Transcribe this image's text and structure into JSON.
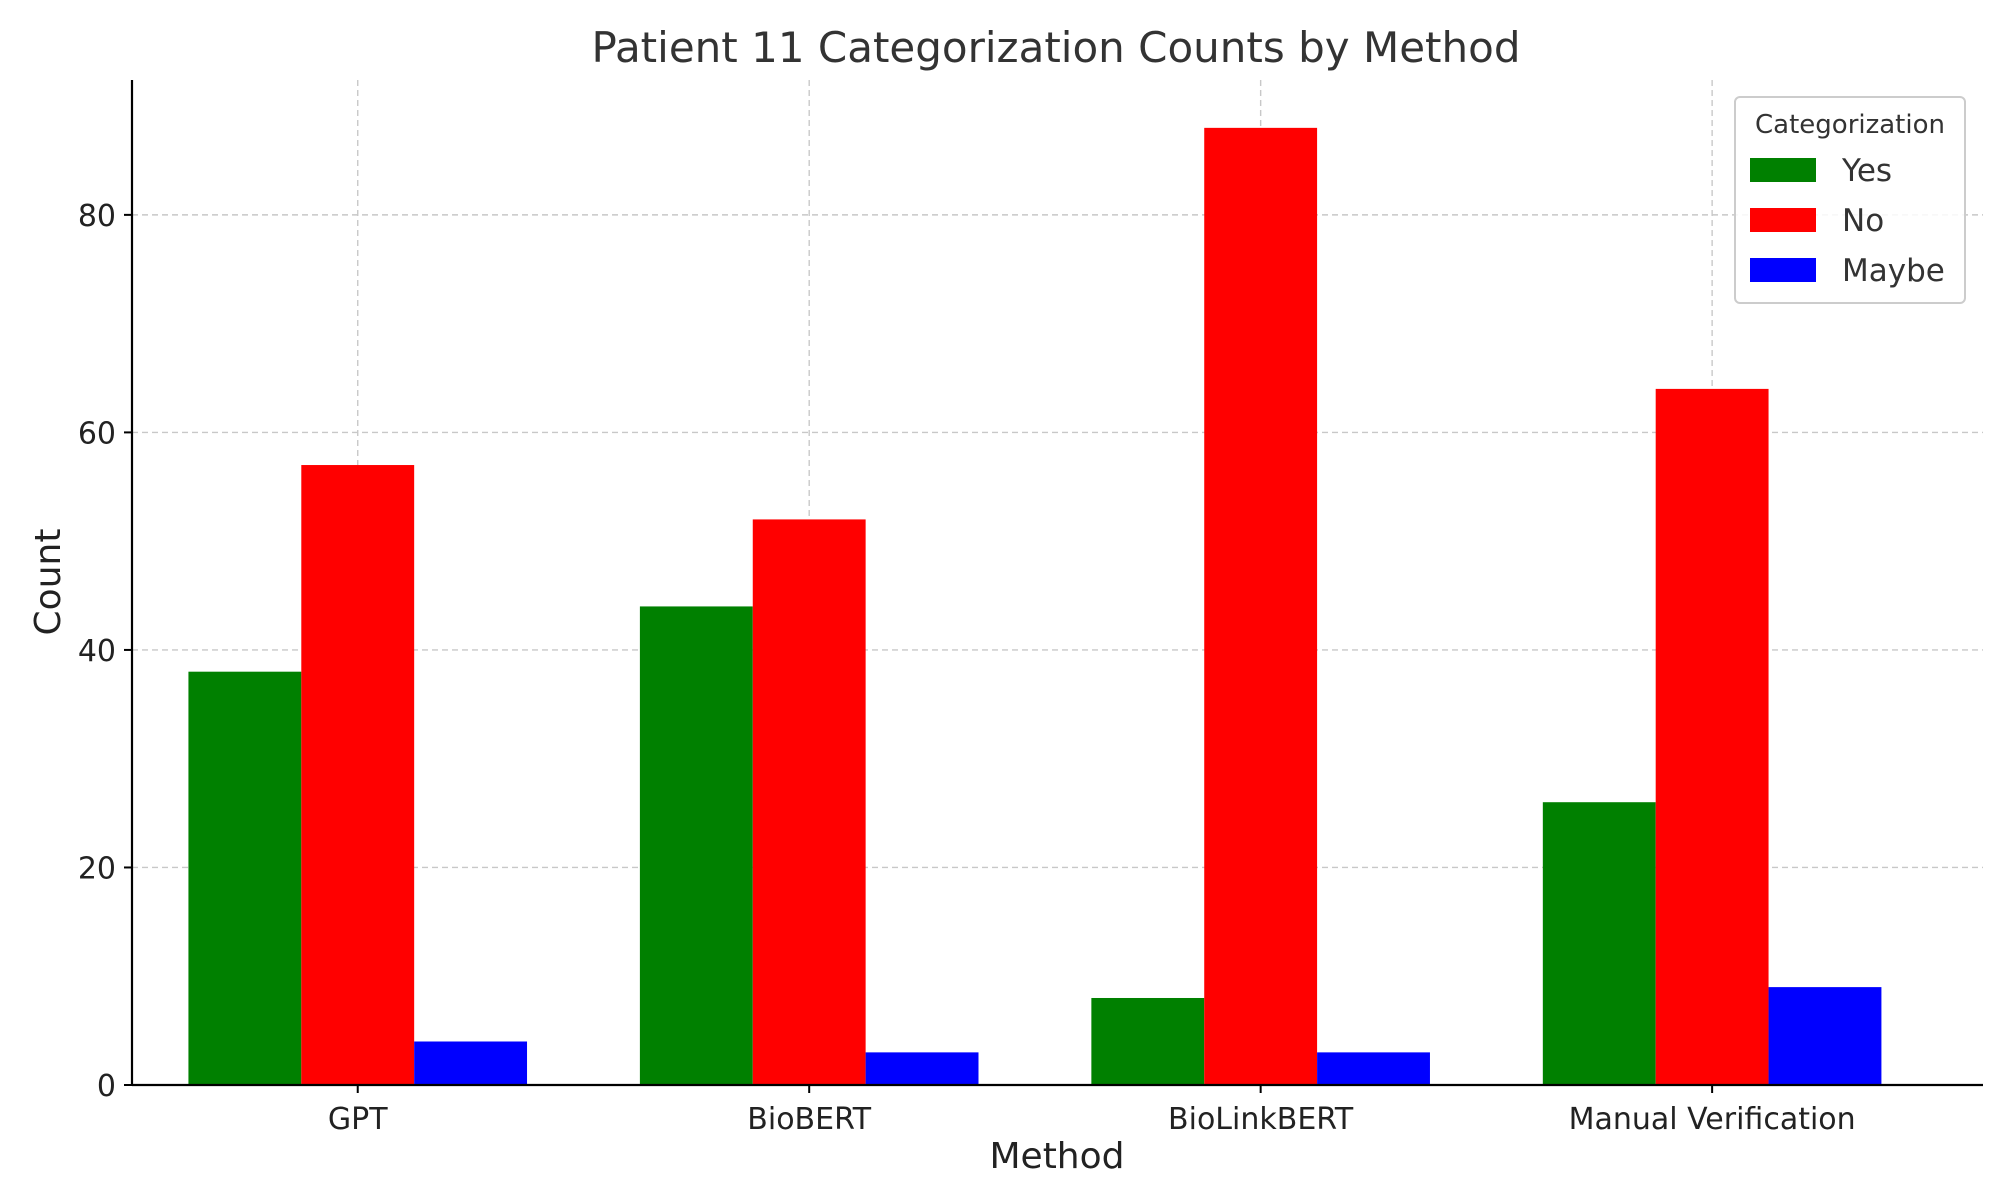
{
  "chart_data": {
    "type": "bar",
    "title": "Patient 11 Categorization Counts by Method",
    "xlabel": "Method",
    "ylabel": "Count",
    "categories": [
      "GPT",
      "BioBERT",
      "BioLinkBERT",
      "Manual Verification"
    ],
    "series": [
      {
        "name": "Yes",
        "color": "#008000",
        "values": [
          38,
          44,
          8,
          26
        ]
      },
      {
        "name": "No",
        "color": "#ff0000",
        "values": [
          57,
          52,
          88,
          64
        ]
      },
      {
        "name": "Maybe",
        "color": "#0000ff",
        "values": [
          4,
          3,
          3,
          9
        ]
      }
    ],
    "ylim": [
      0,
      92.4
    ],
    "yticks": [
      0,
      20,
      40,
      60,
      80
    ],
    "grid": true,
    "legend": {
      "title": "Categorization",
      "position": "top-right"
    }
  }
}
